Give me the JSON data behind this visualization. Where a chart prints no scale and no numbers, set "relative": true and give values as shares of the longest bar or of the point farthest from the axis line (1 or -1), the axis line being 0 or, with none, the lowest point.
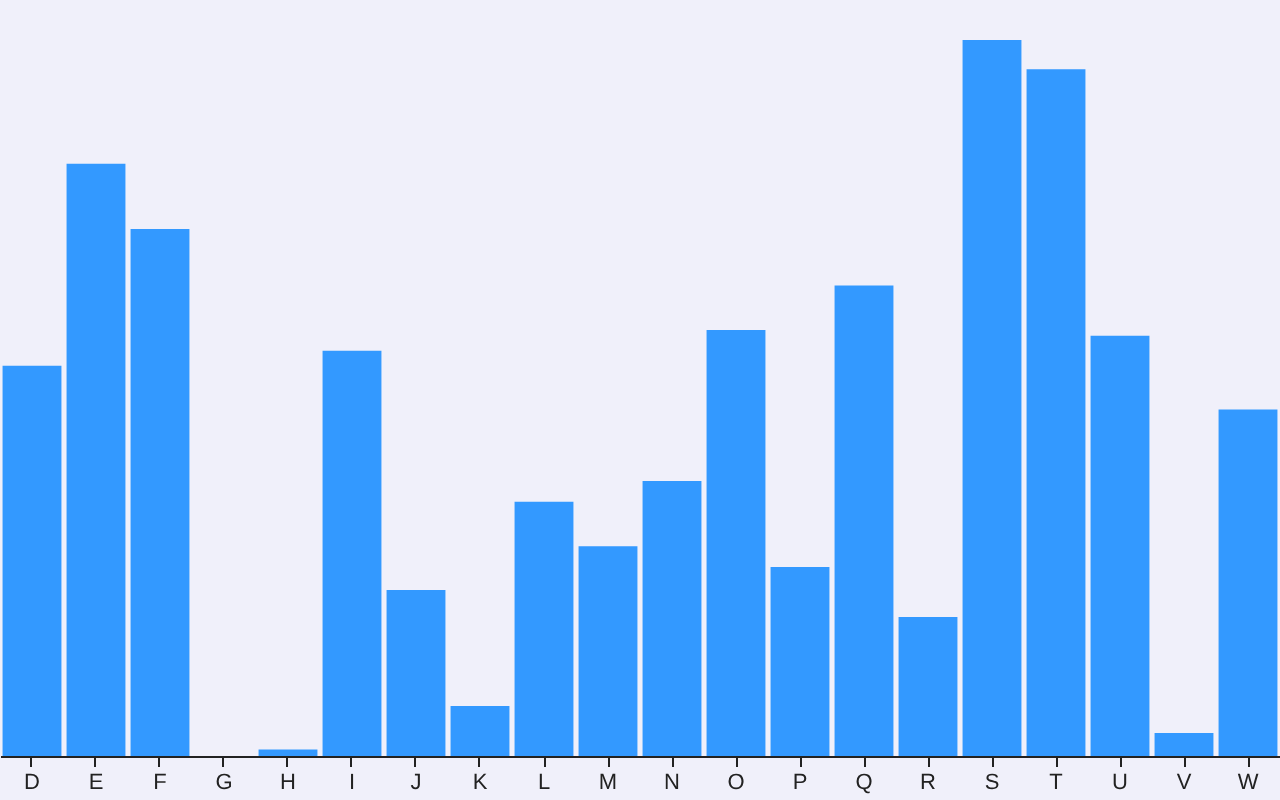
{
  "chart_data": {
    "type": "bar",
    "relative": true,
    "color": "#3399ff",
    "categories": [
      "D",
      "E",
      "F",
      "G",
      "H",
      "I",
      "J",
      "K",
      "L",
      "M",
      "N",
      "O",
      "P",
      "Q",
      "R",
      "S",
      "T",
      "U",
      "V",
      "W"
    ],
    "values": [
      0.545,
      0.827,
      0.736,
      0,
      0.009,
      0.566,
      0.232,
      0.07,
      0.355,
      0.293,
      0.384,
      0.595,
      0.264,
      0.657,
      0.194,
      1,
      0.959,
      0.587,
      0.032,
      0.484
    ]
  }
}
